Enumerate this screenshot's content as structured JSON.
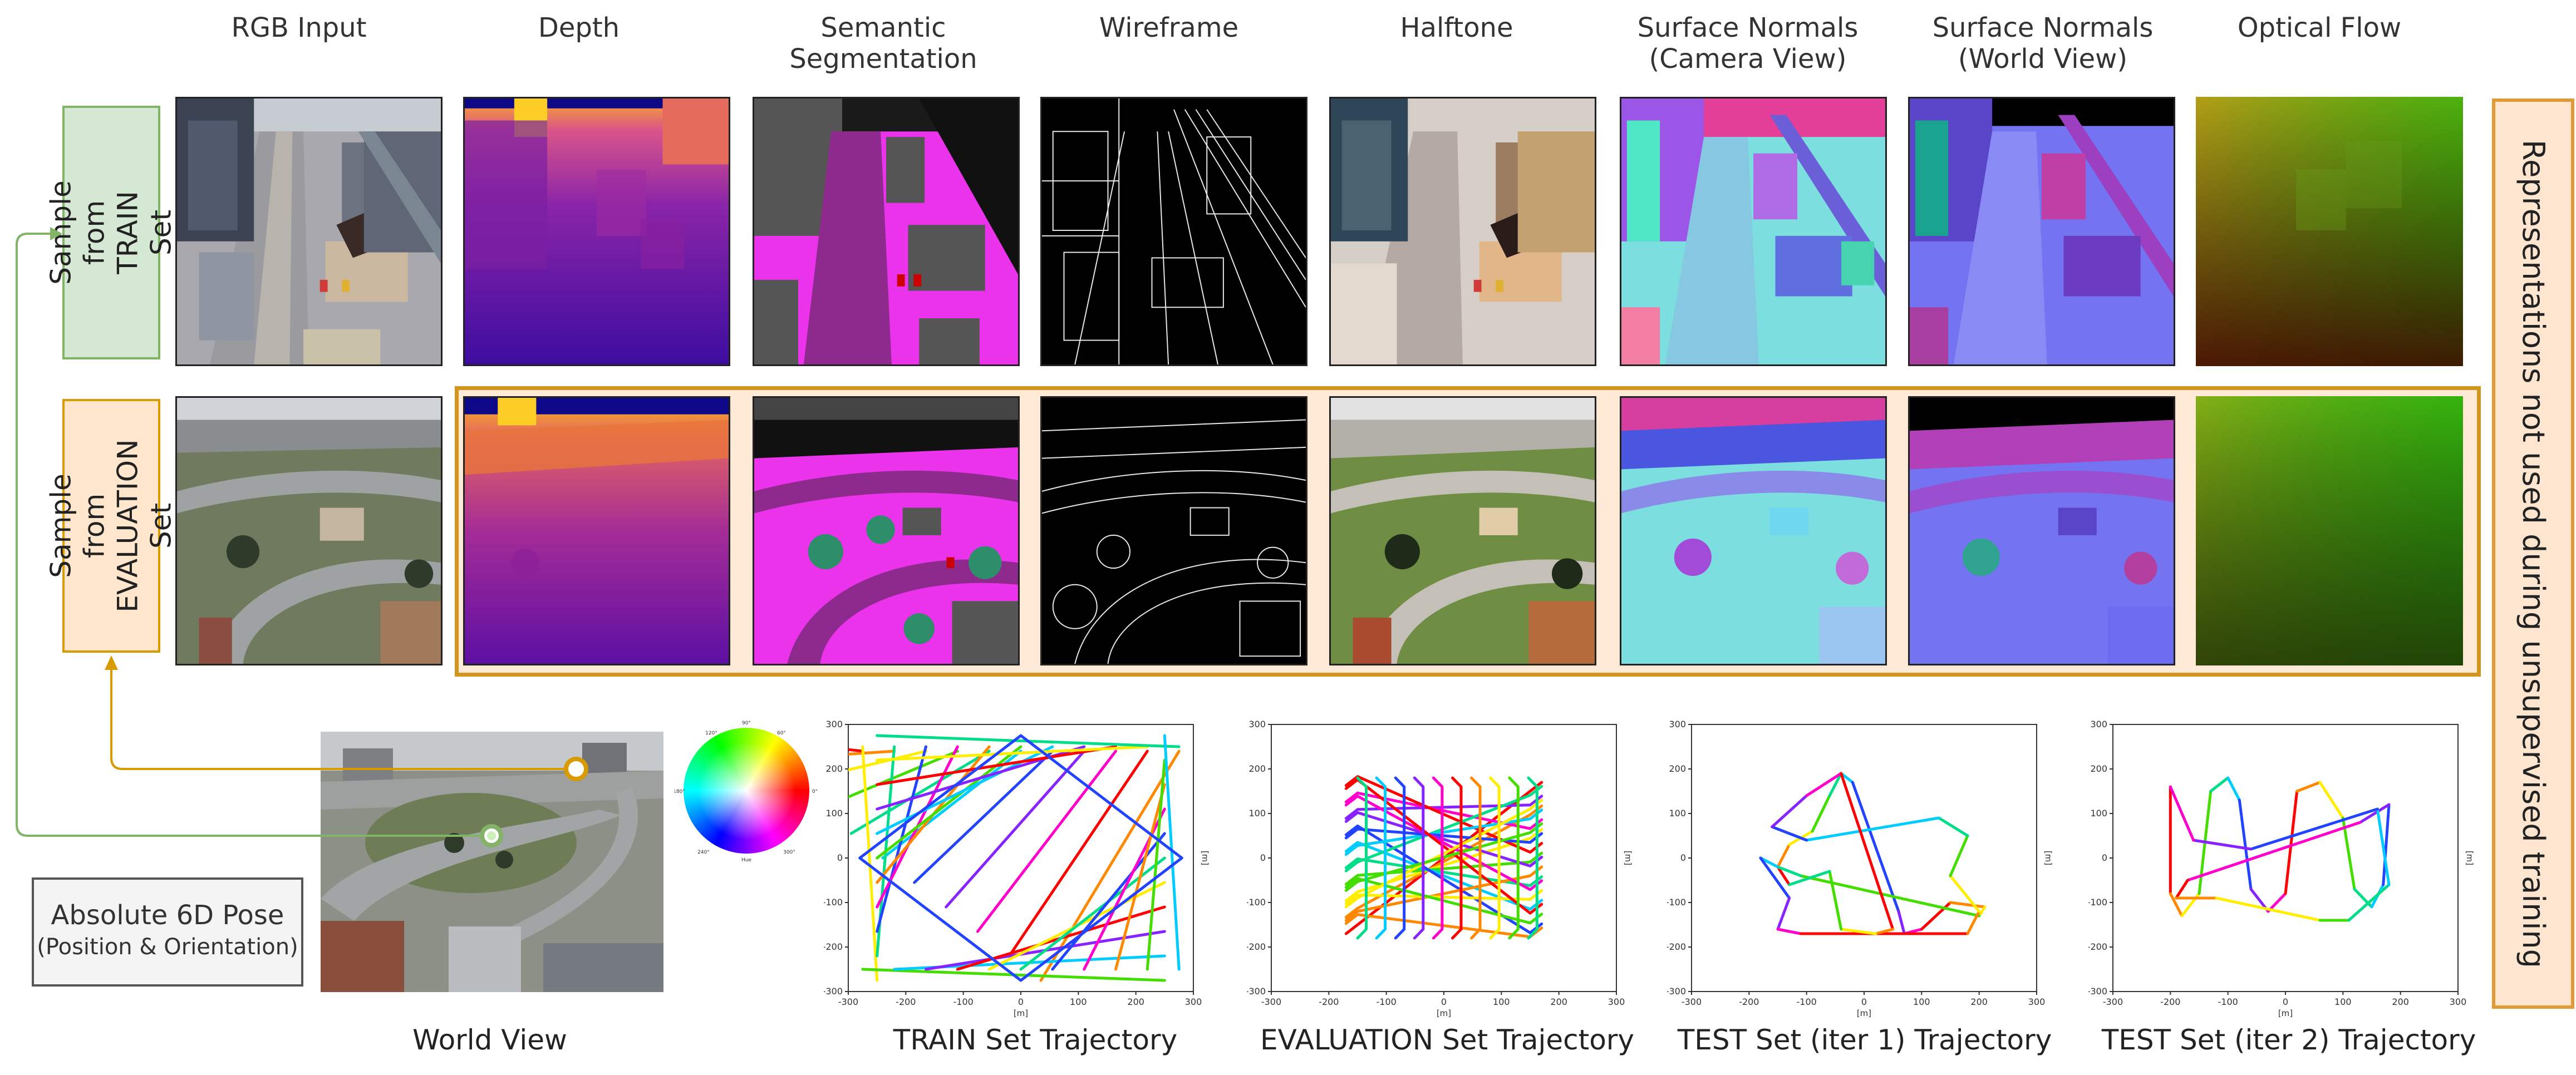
{
  "columns": [
    {
      "id": "rgb",
      "label": "RGB Input"
    },
    {
      "id": "depth",
      "label": "Depth"
    },
    {
      "id": "semantic",
      "label": "Semantic\nSegmentation"
    },
    {
      "id": "wireframe",
      "label": "Wireframe"
    },
    {
      "id": "halftone",
      "label": "Halftone"
    },
    {
      "id": "normals_cam",
      "label": "Surface Normals\n(Camera View)"
    },
    {
      "id": "normals_world",
      "label": "Surface Normals\n(World View)"
    },
    {
      "id": "flow",
      "label": "Optical Flow"
    }
  ],
  "rows": {
    "train": {
      "label": "Sample from\nTRAIN Set",
      "color": "#82b366",
      "fill": "#d5e8d4"
    },
    "eval": {
      "label": "Sample from\nEVALUATION Set",
      "color": "#d79b00",
      "fill": "#ffe6cc"
    }
  },
  "side_note": "Representations not used during unsupervised training",
  "pose_box": {
    "line1": "Absolute 6D Pose",
    "line2": "(Position & Orientation)"
  },
  "color_wheel": {
    "ticks": [
      "90°",
      "60°",
      "30°",
      "0°",
      "330°",
      "300°",
      "270°",
      "240°",
      "210°",
      "180°",
      "150°",
      "120°"
    ],
    "center_label": "Hue"
  },
  "captions": {
    "world": "World View",
    "train": "TRAIN Set Trajectory",
    "eval": "EVALUATION Set Trajectory",
    "test1": "TEST Set (iter 1) Trajectory",
    "test2": "TEST Set (iter 2) Trajectory"
  },
  "chart_data": [
    {
      "type": "line",
      "id": "train",
      "xlabel": "[m]",
      "ylabel": "[m]",
      "xlim": [
        -300,
        300
      ],
      "ylim": [
        -300,
        300
      ],
      "xticks": [
        -300,
        -200,
        -100,
        0,
        100,
        200,
        300
      ],
      "yticks": [
        -300,
        -200,
        -100,
        0,
        100,
        200,
        300
      ]
    },
    {
      "type": "line",
      "id": "eval",
      "xlabel": "[m]",
      "ylabel": "[m]",
      "xlim": [
        -300,
        300
      ],
      "ylim": [
        -300,
        300
      ],
      "xticks": [
        -300,
        -200,
        -100,
        0,
        100,
        200,
        300
      ],
      "yticks": [
        -300,
        -200,
        -100,
        0,
        100,
        200,
        300
      ]
    },
    {
      "type": "line",
      "id": "test1",
      "xlabel": "[m]",
      "ylabel": "[m]",
      "xlim": [
        -300,
        300
      ],
      "ylim": [
        -300,
        300
      ],
      "xticks": [
        -300,
        -200,
        -100,
        0,
        100,
        200,
        300
      ],
      "yticks": [
        -300,
        -200,
        -100,
        0,
        100,
        200,
        300
      ]
    },
    {
      "type": "line",
      "id": "test2",
      "xlabel": "[m]",
      "ylabel": "[m]",
      "xlim": [
        -300,
        300
      ],
      "ylim": [
        -300,
        300
      ],
      "xticks": [
        -300,
        -200,
        -100,
        0,
        100,
        200,
        300
      ],
      "yticks": [
        -300,
        -200,
        -100,
        0,
        100,
        200,
        300
      ]
    }
  ]
}
